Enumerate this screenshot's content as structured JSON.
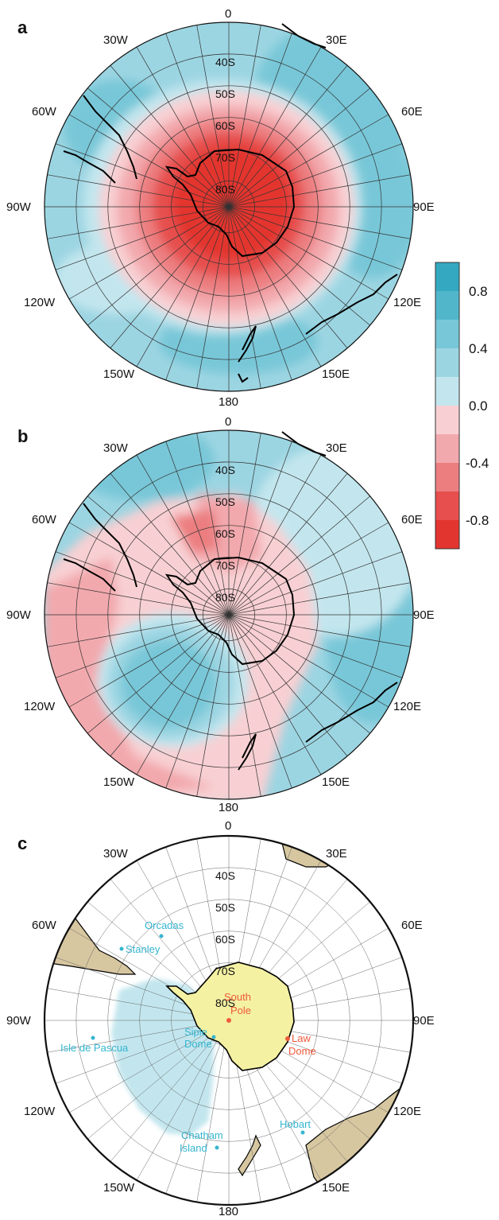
{
  "colors": {
    "blue_1": "#c3e6ee",
    "blue_2": "#9cd5e2",
    "blue_3": "#78c7d8",
    "blue_4": "#52b6cb",
    "blue_5": "#34a8c1",
    "red_1": "#f8d0d3",
    "red_2": "#f2a9ad",
    "red_3": "#ec7e80",
    "red_4": "#e64f4d",
    "red_5": "#e3352f",
    "land": "#d7c7a0",
    "antarctica": "#f4f1a3",
    "station_blue": "#35b5cf",
    "station_red": "#ef5a3c"
  },
  "panels": [
    {
      "id": "a",
      "label": "a"
    },
    {
      "id": "b",
      "label": "b"
    },
    {
      "id": "c",
      "label": "c"
    }
  ],
  "longitude_labels": {
    "top": "0",
    "bottom": "180",
    "w30": "30W",
    "w60": "60W",
    "w90": "90W",
    "w120": "120W",
    "w150": "150W",
    "e30": "30E",
    "e60": "60E",
    "e90": "90E",
    "e120": "120E",
    "e150": "150E"
  },
  "latitude_labels": [
    "40S",
    "50S",
    "60S",
    "70S",
    "80S"
  ],
  "colorbar": {
    "tick_labels": [
      "0.8",
      "0.4",
      "0.0",
      "-0.4",
      "-0.8"
    ],
    "levels": [
      "blue_5",
      "blue_4",
      "blue_3",
      "blue_2",
      "blue_1",
      "red_1",
      "red_2",
      "red_3",
      "red_4",
      "red_5"
    ]
  },
  "stations_blue": [
    {
      "name": "Orcadas"
    },
    {
      "name": "Stanley"
    },
    {
      "name": "Isle de Pascua"
    },
    {
      "name_line1": "Siple",
      "name_line2": "Dome"
    },
    {
      "name_line1": "Chatham",
      "name_line2": "Island"
    },
    {
      "name": "Hobart"
    }
  ],
  "stations_red": [
    {
      "name_line1": "South",
      "name_line2": "Pole"
    },
    {
      "name_line1": "Law",
      "name_line2": "Dome"
    }
  ]
}
